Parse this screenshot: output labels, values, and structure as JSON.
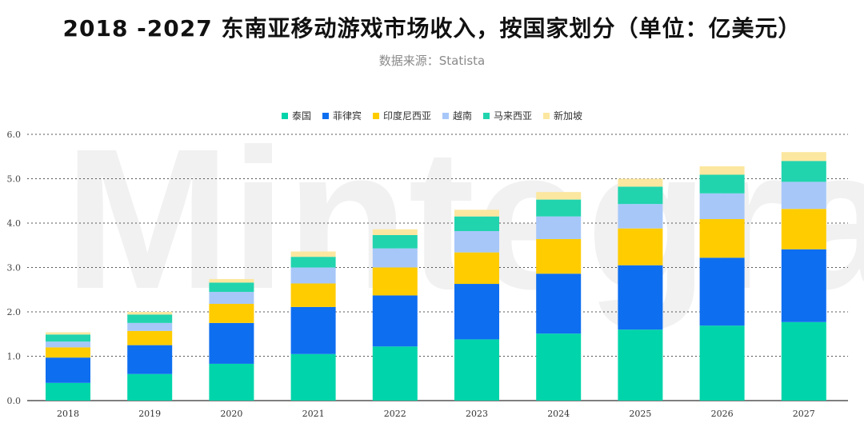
{
  "title": "2018 -2027 东南亚移动游戏市场收入，按国家划分（单位：亿美元）",
  "source": "数据来源：Statista",
  "watermark": "Mintegral",
  "chart_data": {
    "type": "bar",
    "stacked": true,
    "categories": [
      "2018",
      "2019",
      "2020",
      "2021",
      "2022",
      "2023",
      "2024",
      "2025",
      "2026",
      "2027"
    ],
    "ylim": [
      0,
      6
    ],
    "yticks": [
      "0.0",
      "1.0",
      "2.0",
      "3.0",
      "4.0",
      "5.0",
      "6.0"
    ],
    "grid": true,
    "legend_position": "top-center",
    "series": [
      {
        "name": "泰国",
        "color": "#00d4aa",
        "values": [
          0.4,
          0.6,
          0.83,
          1.05,
          1.22,
          1.38,
          1.51,
          1.6,
          1.69,
          1.77
        ]
      },
      {
        "name": "菲律宾",
        "color": "#0e6ef0",
        "values": [
          0.57,
          0.65,
          0.92,
          1.06,
          1.15,
          1.25,
          1.35,
          1.45,
          1.53,
          1.64
        ]
      },
      {
        "name": "印度尼西亚",
        "color": "#ffcc00",
        "values": [
          0.23,
          0.32,
          0.43,
          0.53,
          0.63,
          0.71,
          0.78,
          0.83,
          0.87,
          0.91
        ]
      },
      {
        "name": "越南",
        "color": "#a7c7f9",
        "values": [
          0.13,
          0.18,
          0.27,
          0.36,
          0.43,
          0.48,
          0.51,
          0.55,
          0.58,
          0.61
        ]
      },
      {
        "name": "马来西亚",
        "color": "#21d4ae",
        "values": [
          0.16,
          0.19,
          0.21,
          0.24,
          0.3,
          0.33,
          0.38,
          0.39,
          0.42,
          0.47
        ]
      },
      {
        "name": "新加坡",
        "color": "#fce7a0",
        "values": [
          0.05,
          0.06,
          0.08,
          0.12,
          0.13,
          0.15,
          0.17,
          0.18,
          0.19,
          0.2
        ]
      }
    ]
  }
}
